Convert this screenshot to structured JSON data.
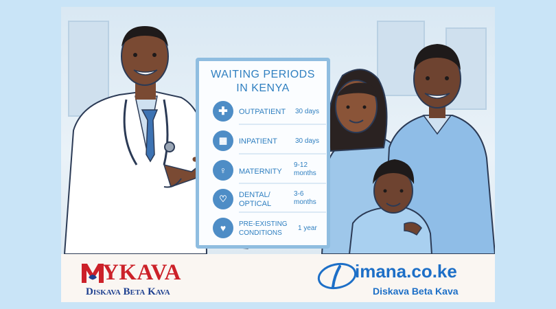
{
  "poster": {
    "title_line1": "WAITING PERIODS",
    "title_line2": "IN KENYA",
    "items": [
      {
        "label": "OUTPATIENT",
        "value": "30 days",
        "icon": "medical-cross-icon"
      },
      {
        "label": "INPATIENT",
        "value": "30 days",
        "icon": "hospital-building-icon"
      },
      {
        "label": "MATERNITY",
        "value_line1": "9-12",
        "value_line2": "months",
        "icon": "pregnancy-icon"
      },
      {
        "label_line1": "DENTAL/",
        "label_line2": "OPTICAL",
        "value_line1": "3-6",
        "value_line2": "months",
        "icon": "tooth-heart-icon"
      },
      {
        "label_line1": "PRE-EXISTING",
        "label_line2": "CONDITIONS",
        "value": "1 year",
        "icon": "heart-pulse-icon"
      }
    ]
  },
  "footer": {
    "left_brand": "YKAVA",
    "left_tagline": "Diskava Beta Kava",
    "right_brand": "imana.co.ke",
    "right_tagline": "Diskava Beta Kava"
  },
  "colors": {
    "page_bg": "#c9e4f7",
    "poster_text": "#2f7fc0",
    "icon_bg": "#4e8dc6",
    "mykava_red": "#cc2129",
    "mykava_blue": "#1d3f8f",
    "imana_blue": "#1d6fc7"
  }
}
